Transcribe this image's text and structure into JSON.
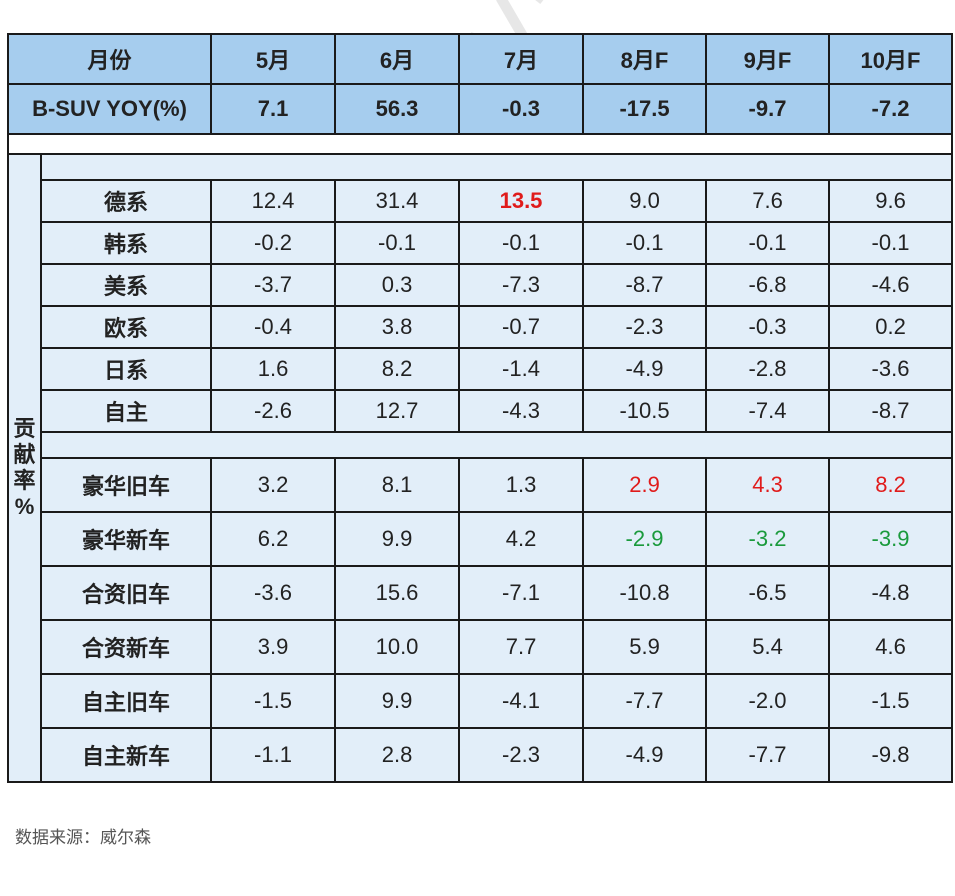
{
  "header": {
    "label": "月份",
    "months": [
      "5月",
      "6月",
      "7月",
      "8月F",
      "9月F",
      "10月F"
    ]
  },
  "yoy": {
    "label": "B-SUV YOY(%)",
    "values": [
      "7.1",
      "56.3",
      "-0.3",
      "-17.5",
      "-9.7",
      "-7.2"
    ]
  },
  "group_label": [
    "贡",
    "献",
    "率",
    "%"
  ],
  "origin_rows": [
    {
      "label": "德系",
      "values": [
        "12.4",
        "31.4",
        "13.5",
        "9.0",
        "7.6",
        "9.6"
      ]
    },
    {
      "label": "韩系",
      "values": [
        "-0.2",
        "-0.1",
        "-0.1",
        "-0.1",
        "-0.1",
        "-0.1"
      ]
    },
    {
      "label": "美系",
      "values": [
        "-3.7",
        "0.3",
        "-7.3",
        "-8.7",
        "-6.8",
        "-4.6"
      ]
    },
    {
      "label": "欧系",
      "values": [
        "-0.4",
        "3.8",
        "-0.7",
        "-2.3",
        "-0.3",
        "0.2"
      ]
    },
    {
      "label": "日系",
      "values": [
        "1.6",
        "8.2",
        "-1.4",
        "-4.9",
        "-2.8",
        "-3.6"
      ]
    },
    {
      "label": "自主",
      "values": [
        "-2.6",
        "12.7",
        "-4.3",
        "-10.5",
        "-7.4",
        "-8.7"
      ]
    }
  ],
  "model_rows": [
    {
      "label": "豪华旧车",
      "values": [
        "3.2",
        "8.1",
        "1.3",
        "2.9",
        "4.3",
        "8.2"
      ]
    },
    {
      "label": "豪华新车",
      "values": [
        "6.2",
        "9.9",
        "4.2",
        "-2.9",
        "-3.2",
        "-3.9"
      ]
    },
    {
      "label": "合资旧车",
      "values": [
        "-3.6",
        "15.6",
        "-7.1",
        "-10.8",
        "-6.5",
        "-4.8"
      ]
    },
    {
      "label": "合资新车",
      "values": [
        "3.9",
        "10.0",
        "7.7",
        "5.9",
        "5.4",
        "4.6"
      ]
    },
    {
      "label": "自主旧车",
      "values": [
        "-1.5",
        "9.9",
        "-4.1",
        "-7.7",
        "-2.0",
        "-1.5"
      ]
    },
    {
      "label": "自主新车",
      "values": [
        "-1.1",
        "2.8",
        "-2.3",
        "-4.9",
        "-7.7",
        "-9.8"
      ]
    }
  ],
  "highlight_colors": {
    "red": "#e01b1b",
    "green": "#1a9a3c",
    "header_bg": "#a6cdee",
    "row_bg": "#e2eef9"
  },
  "source": "数据来源：威尔森",
  "watermark": "www.way-s.cn"
}
